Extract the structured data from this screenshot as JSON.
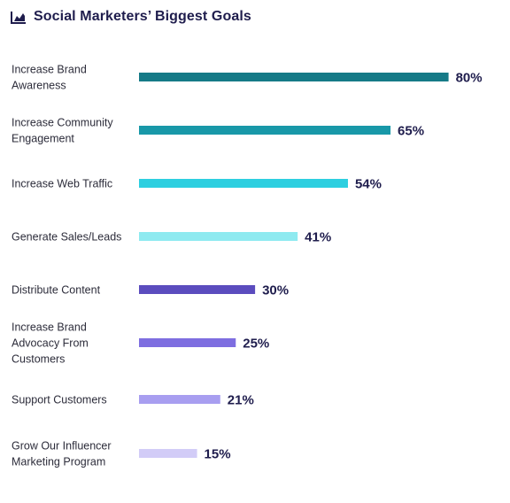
{
  "chart_data": {
    "type": "bar",
    "orientation": "horizontal",
    "title": "Social Marketers’ Biggest Goals",
    "title_icon": "bar-chart-icon",
    "categories": [
      "Increase Brand Awareness",
      "Increase Community Engagement",
      "Increase Web Traffic",
      "Generate Sales/Leads",
      "Distribute Content",
      "Increase Brand Advocacy From Customers",
      "Support Customers",
      "Grow Our Influencer Marketing Program"
    ],
    "category_lines": [
      [
        "Increase Brand",
        "Awareness"
      ],
      [
        "Increase Community",
        "Engagement"
      ],
      [
        "Increase Web Traffic"
      ],
      [
        "Generate Sales/Leads"
      ],
      [
        "Distribute Content"
      ],
      [
        "Increase Brand",
        "Advocacy From",
        "Customers"
      ],
      [
        "Support Customers"
      ],
      [
        "Grow Our Influencer",
        "Marketing Program"
      ]
    ],
    "values": [
      80,
      65,
      54,
      41,
      30,
      25,
      21,
      15
    ],
    "value_labels": [
      "80%",
      "65%",
      "54%",
      "41%",
      "30%",
      "25%",
      "21%",
      "15%"
    ],
    "colors": [
      "#167a87",
      "#1898a8",
      "#2dcfe0",
      "#8eeaf0",
      "#5b4cbe",
      "#7e6ee0",
      "#a89ef0",
      "#d2ccf7"
    ],
    "xlim": [
      0,
      100
    ],
    "grid": false,
    "legend": "none"
  }
}
